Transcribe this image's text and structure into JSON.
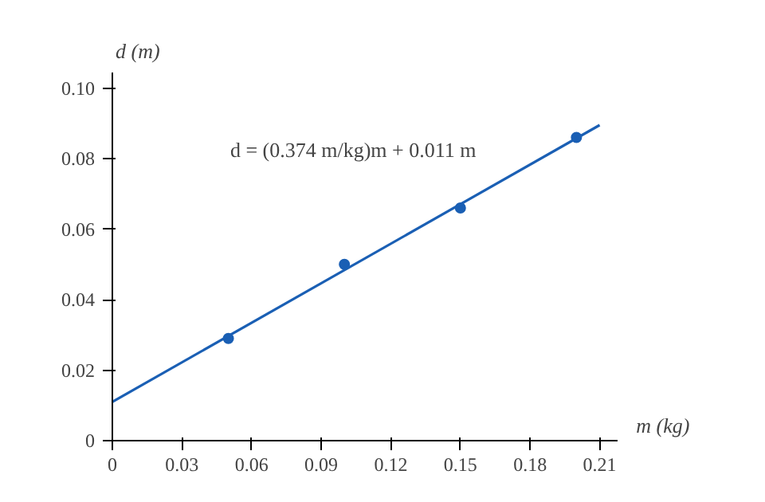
{
  "chart_data": {
    "type": "scatter",
    "xlabel": "m (kg)",
    "ylabel": "d (m)",
    "series": [
      {
        "marker": "circle",
        "color": "#1a5fb4",
        "x": [
          0.05,
          0.1,
          0.15,
          0.2
        ],
        "values": [
          0.029,
          0.05,
          0.066,
          0.086
        ]
      },
      {
        "type": "line",
        "color": "#1a5fb4",
        "x": [
          0,
          0.21
        ],
        "values": [
          0.011,
          0.0895
        ]
      }
    ],
    "annotations": [
      {
        "text": "d = (0.374 m/kg)m + 0.011 m",
        "x": 0.165,
        "y": 0.0727
      }
    ],
    "xlim": [
      0,
      0.2175
    ],
    "ylim": [
      0,
      0.1045
    ],
    "xticks": [
      0,
      0.03,
      0.06,
      0.09,
      0.12,
      0.15,
      0.18,
      0.21
    ],
    "yticks": [
      0,
      {
        "value": 0.02,
        "label": "0.02"
      },
      {
        "value": 0.04,
        "label": "0.04"
      },
      {
        "value": 0.06,
        "label": "0.06"
      },
      {
        "value": 0.08,
        "label": "0.08"
      },
      {
        "value": 0.1,
        "label": "0.10"
      }
    ],
    "grid": false,
    "line_style": "solid"
  }
}
